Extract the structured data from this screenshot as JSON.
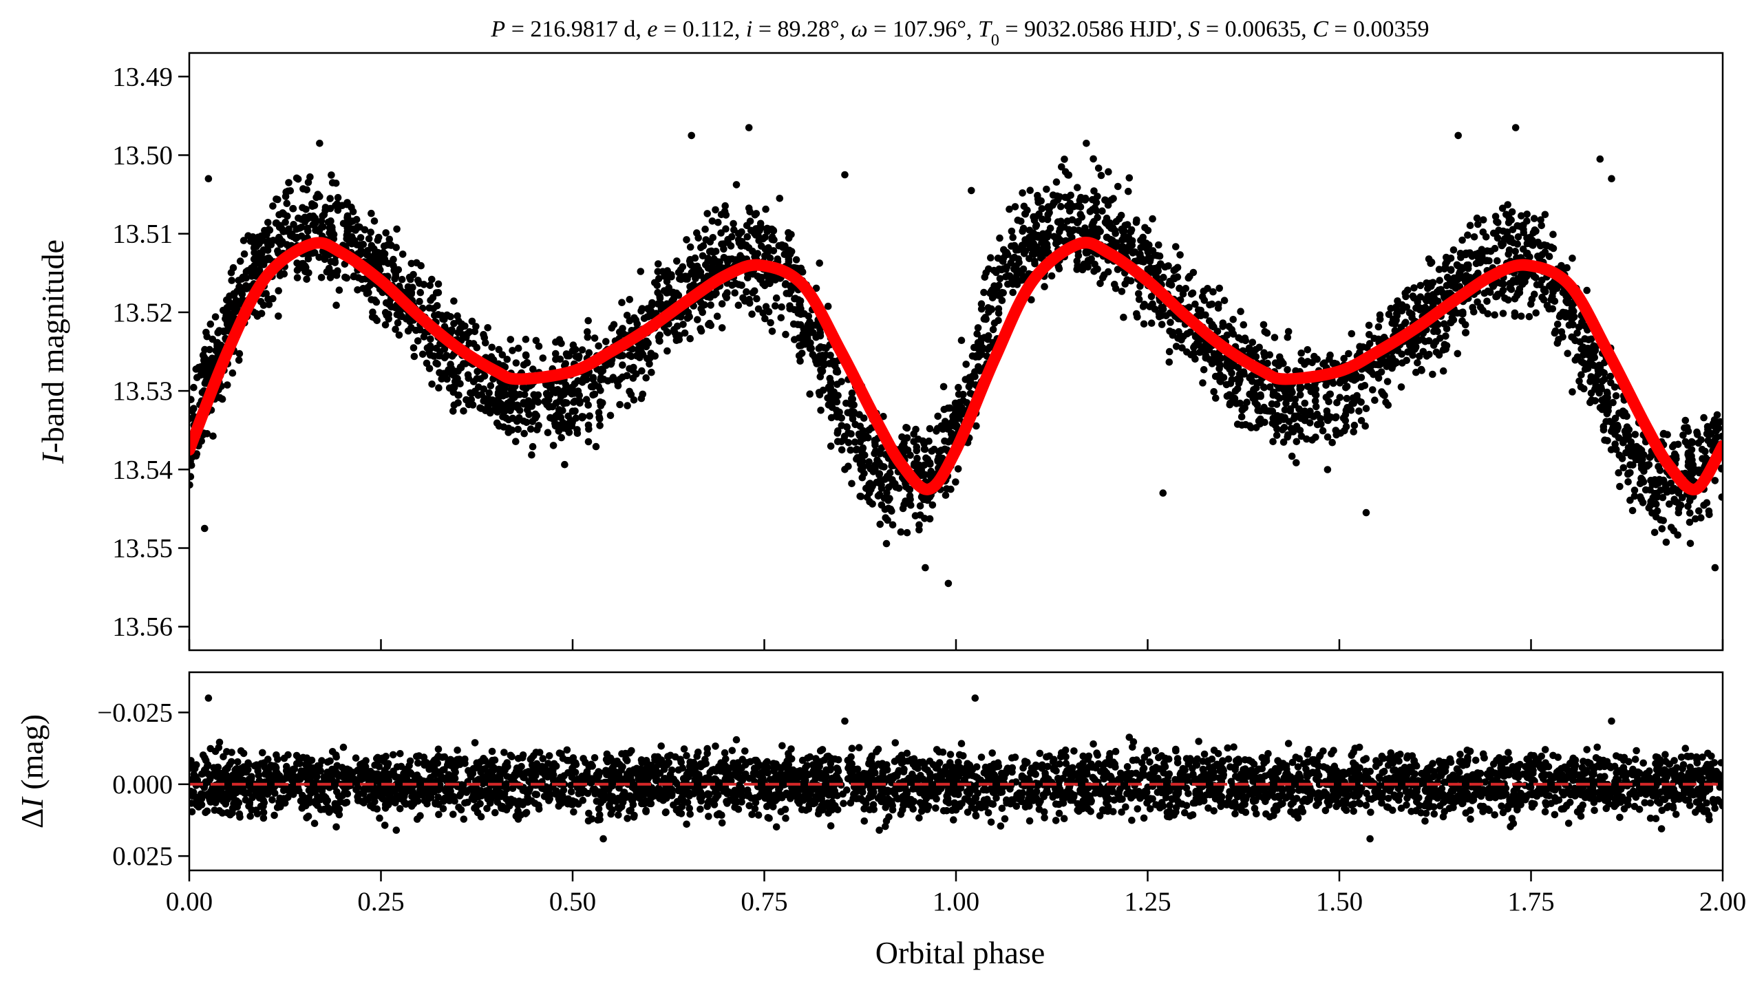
{
  "figure": {
    "title_parts": [
      {
        "t": "P",
        "italic": true
      },
      {
        "t": " = 216.9817 d, "
      },
      {
        "t": "e",
        "italic": true
      },
      {
        "t": " = 0.112, "
      },
      {
        "t": "i",
        "italic": true
      },
      {
        "t": " = 89.28°, "
      },
      {
        "t": "ω",
        "italic": true
      },
      {
        "t": " = 107.96°, "
      },
      {
        "t": "T",
        "italic": true
      },
      {
        "t": "0",
        "sub": true
      },
      {
        "t": " = 9032.0586 HJD', "
      },
      {
        "t": "S",
        "italic": true
      },
      {
        "t": " = 0.00635, "
      },
      {
        "t": "C",
        "italic": true
      },
      {
        "t": " = 0.00359"
      }
    ],
    "xlabel": "Orbital phase",
    "colors": {
      "points": "#000000",
      "model": "#ff0000",
      "zero_line": "#d62728",
      "axes": "#000000"
    }
  },
  "chart_data": [
    {
      "type": "scatter",
      "panel": "light-curve",
      "ylabel_italic": "I",
      "ylabel_rest": "-band magnitude",
      "xlim": [
        0.0,
        2.0
      ],
      "ylim": [
        13.563,
        13.487
      ],
      "inverted_y": true,
      "xticks": [
        0.0,
        0.25,
        0.5,
        0.75,
        1.0,
        1.25,
        1.5,
        1.75,
        2.0
      ],
      "yticks": [
        13.49,
        13.5,
        13.51,
        13.52,
        13.53,
        13.54,
        13.55,
        13.56
      ],
      "ytick_labels": [
        "13.49",
        "13.50",
        "13.51",
        "13.52",
        "13.53",
        "13.54",
        "13.55",
        "13.56"
      ],
      "series": [
        {
          "kind": "observations",
          "style": "black filled circles",
          "x": [
            0.0,
            0.02,
            0.04,
            0.06,
            0.08,
            0.1,
            0.12,
            0.14,
            0.16,
            0.18,
            0.2,
            0.22,
            0.24,
            0.26,
            0.28,
            0.3,
            0.32,
            0.34,
            0.36,
            0.38,
            0.4,
            0.42,
            0.44,
            0.46,
            0.48,
            0.5,
            0.52,
            0.54,
            0.56,
            0.58,
            0.6,
            0.62,
            0.64,
            0.66,
            0.68,
            0.7,
            0.72,
            0.74,
            0.76,
            0.78,
            0.8,
            0.82,
            0.84,
            0.86,
            0.88,
            0.9,
            0.92,
            0.94,
            0.96,
            0.98,
            1.0,
            1.02,
            1.04,
            1.06,
            1.08,
            1.1,
            1.12,
            1.14,
            1.16,
            1.18,
            1.2,
            1.22,
            1.24,
            1.26,
            1.28,
            1.3,
            1.32,
            1.34,
            1.36,
            1.38,
            1.4,
            1.42,
            1.44,
            1.46,
            1.48,
            1.5,
            1.52,
            1.54,
            1.56,
            1.58,
            1.6,
            1.62,
            1.64,
            1.66,
            1.68,
            1.7,
            1.72,
            1.74,
            1.76,
            1.78,
            1.8,
            1.82,
            1.84,
            1.86,
            1.88,
            1.9,
            1.92,
            1.94,
            1.96,
            1.98,
            2.0
          ],
          "y": [
            13.5365,
            13.531,
            13.5255,
            13.52,
            13.516,
            13.513,
            13.511,
            13.5095,
            13.509,
            13.5095,
            13.5105,
            13.512,
            13.514,
            13.516,
            13.518,
            13.5205,
            13.523,
            13.525,
            13.527,
            13.528,
            13.5295,
            13.5305,
            13.531,
            13.531,
            13.5305,
            13.53,
            13.529,
            13.5275,
            13.526,
            13.524,
            13.522,
            13.52,
            13.518,
            13.5165,
            13.515,
            13.514,
            13.5135,
            13.5135,
            13.5145,
            13.5165,
            13.52,
            13.524,
            13.529,
            13.534,
            13.538,
            13.5405,
            13.5415,
            13.5415,
            13.541,
            13.5385,
            13.5345,
            13.529,
            13.522,
            13.516,
            13.5125,
            13.5105,
            13.5095,
            13.509,
            13.509,
            13.5095,
            13.5105,
            13.512,
            13.514,
            13.516,
            13.518,
            13.5205,
            13.523,
            13.525,
            13.527,
            13.528,
            13.5295,
            13.5305,
            13.531,
            13.531,
            13.5305,
            13.53,
            13.529,
            13.5275,
            13.526,
            13.524,
            13.522,
            13.52,
            13.518,
            13.5165,
            13.515,
            13.514,
            13.5135,
            13.5135,
            13.5145,
            13.5165,
            13.52,
            13.524,
            13.529,
            13.534,
            13.538,
            13.5405,
            13.5415,
            13.5415,
            13.541,
            13.5385,
            13.5365
          ],
          "scatter_mag": 0.0065,
          "outlier_points": [
            [
              0.025,
              13.503
            ],
            [
              0.02,
              13.5475
            ],
            [
              0.17,
              13.4985
            ],
            [
              0.655,
              13.4975
            ],
            [
              0.73,
              13.4965
            ],
            [
              0.77,
              13.5055
            ],
            [
              0.855,
              13.5025
            ],
            [
              0.855,
              13.54
            ],
            [
              0.96,
              13.5525
            ],
            [
              0.99,
              13.5545
            ],
            [
              1.02,
              13.5045
            ],
            [
              1.17,
              13.4985
            ],
            [
              1.27,
              13.543
            ],
            [
              1.535,
              13.5455
            ],
            [
              1.655,
              13.4975
            ],
            [
              1.73,
              13.4965
            ],
            [
              1.84,
              13.5005
            ],
            [
              1.855,
              13.503
            ],
            [
              1.99,
              13.5525
            ]
          ]
        },
        {
          "kind": "model",
          "style": "thick red line",
          "x": [
            0.0,
            0.05,
            0.1,
            0.16,
            0.2,
            0.25,
            0.3,
            0.35,
            0.4,
            0.43,
            0.5,
            0.55,
            0.6,
            0.65,
            0.7,
            0.745,
            0.8,
            0.85,
            0.9,
            0.93,
            0.965,
            1.0,
            1.05,
            1.1,
            1.16,
            1.2,
            1.25,
            1.3,
            1.35,
            1.4,
            1.43,
            1.5,
            1.55,
            1.6,
            1.65,
            1.7,
            1.745,
            1.8,
            1.85,
            1.9,
            1.93,
            1.965,
            2.0
          ],
          "y": [
            13.5375,
            13.525,
            13.5155,
            13.5113,
            13.5125,
            13.516,
            13.5205,
            13.5245,
            13.5275,
            13.5285,
            13.5275,
            13.525,
            13.522,
            13.5185,
            13.5153,
            13.514,
            13.5165,
            13.525,
            13.5345,
            13.5395,
            13.5425,
            13.5375,
            13.526,
            13.516,
            13.5113,
            13.5125,
            13.516,
            13.5205,
            13.5245,
            13.5275,
            13.5285,
            13.5275,
            13.525,
            13.522,
            13.5185,
            13.5153,
            13.514,
            13.5165,
            13.525,
            13.5345,
            13.5395,
            13.5425,
            13.537
          ]
        }
      ]
    },
    {
      "type": "scatter",
      "panel": "residuals",
      "ylabel_delta": "Δ",
      "ylabel_italic": "I",
      "ylabel_rest": " (mag)",
      "xlim": [
        0.0,
        2.0
      ],
      "ylim": [
        0.03,
        -0.039
      ],
      "inverted_y": true,
      "xticks": [
        0.0,
        0.25,
        0.5,
        0.75,
        1.0,
        1.25,
        1.5,
        1.75,
        2.0
      ],
      "xtick_labels": [
        "0.00",
        "0.25",
        "0.50",
        "0.75",
        "1.00",
        "1.25",
        "1.50",
        "1.75",
        "2.00"
      ],
      "yticks": [
        -0.025,
        0.0,
        0.025
      ],
      "ytick_labels": [
        "−0.025",
        "0.000",
        "0.025"
      ],
      "zero_line": 0.0,
      "series": [
        {
          "kind": "residuals",
          "style": "black filled circles",
          "typical_spread_mag": 0.012,
          "outlier_points": [
            [
              0.025,
              -0.03
            ],
            [
              0.855,
              -0.022
            ],
            [
              1.025,
              -0.03
            ],
            [
              1.855,
              -0.022
            ],
            [
              0.54,
              0.019
            ],
            [
              1.54,
              0.019
            ],
            [
              0.27,
              0.016
            ],
            [
              0.9,
              0.016
            ]
          ]
        }
      ]
    }
  ]
}
